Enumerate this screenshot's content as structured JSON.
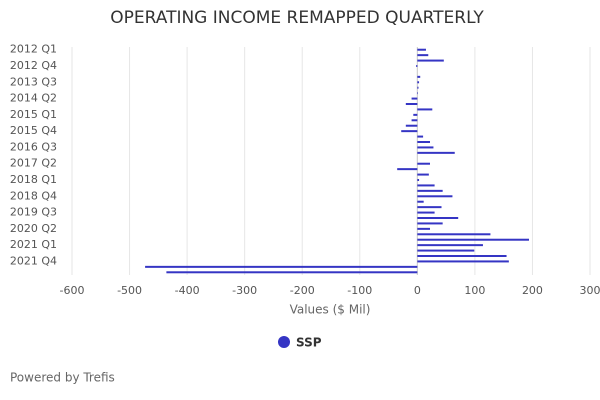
{
  "chart_data": {
    "type": "bar",
    "orientation": "horizontal",
    "title": "OPERATING INCOME REMAPPED QUARTERLY",
    "categories": [
      "2012 Q1",
      null,
      null,
      "2012 Q4",
      null,
      null,
      "2013 Q3",
      null,
      null,
      "2014 Q2",
      null,
      null,
      "2015 Q1",
      null,
      null,
      "2015 Q4",
      null,
      null,
      "2016 Q3",
      null,
      null,
      "2017 Q2",
      null,
      null,
      "2018 Q1",
      null,
      null,
      "2018 Q4",
      null,
      null,
      "2019 Q3",
      null,
      null,
      "2020 Q2",
      null,
      null,
      "2021 Q1",
      null,
      null,
      "2021 Q4",
      null,
      null
    ],
    "series": [
      {
        "name": "SSP",
        "color": "#3535c4",
        "values": [
          15,
          19,
          46,
          -2,
          0,
          5,
          3,
          2,
          1,
          -10,
          -20,
          26,
          -7,
          -10,
          -20,
          -28,
          10,
          22,
          28,
          65,
          0,
          22,
          -35,
          20,
          3,
          30,
          44,
          61,
          11,
          42,
          30,
          71,
          44,
          22,
          127,
          194,
          114,
          99,
          155,
          159,
          -473,
          -436
        ]
      }
    ],
    "xlabel": "Values ($ Mil)",
    "xlim": [
      -600,
      300
    ],
    "xticks": [
      -600,
      -500,
      -400,
      -300,
      -200,
      -100,
      0,
      100,
      200,
      300
    ],
    "grid": true,
    "footer": "Powered by Trefis"
  }
}
